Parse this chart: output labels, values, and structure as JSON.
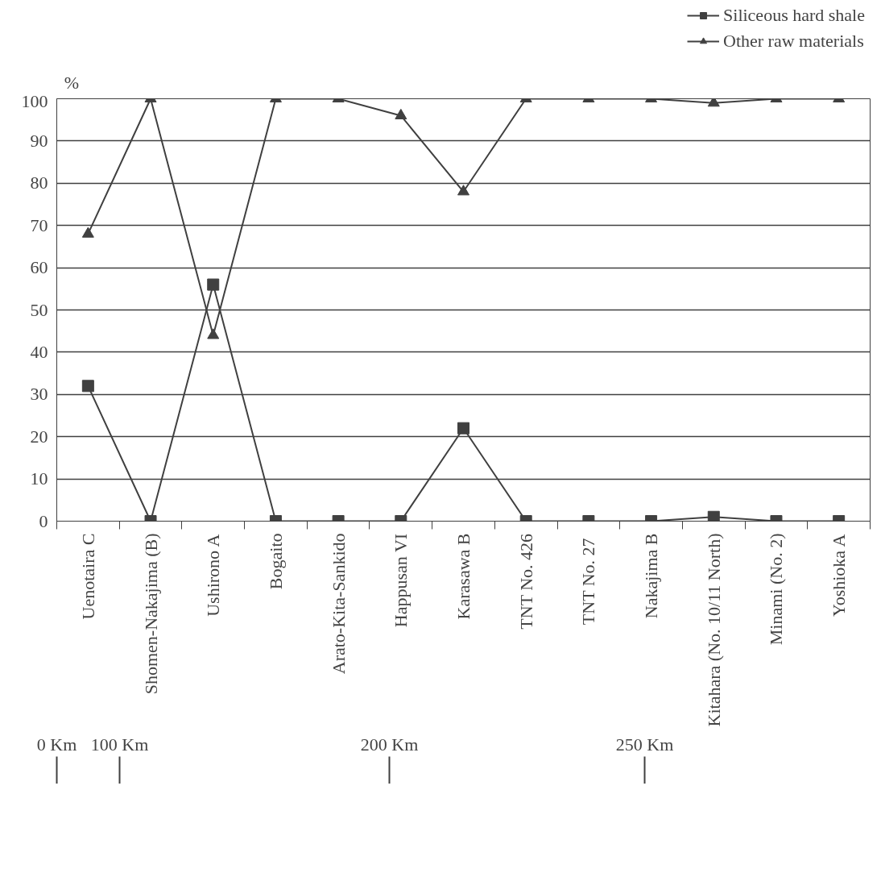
{
  "chart_data": {
    "type": "line",
    "ylabel": "%",
    "categories": [
      "Uenotaira C",
      "Shomen-Nakajima (B)",
      "Ushirono A",
      "Bogaito",
      "Arato-Kita-Sankido",
      "Happusan VI",
      "Karasawa B",
      "TNT No. 426",
      "TNT No.  27",
      "Nakajima B",
      "Kitahara (No. 10/11 North)",
      "Minami (No. 2)",
      "Yoshioka A"
    ],
    "series": [
      {
        "name": "Siliceous hard shale",
        "color": "#404040",
        "marker": "square",
        "values": [
          32,
          0,
          56,
          0,
          0,
          0,
          22,
          0,
          0,
          0,
          1,
          0,
          0
        ]
      },
      {
        "name": "Other raw materials",
        "color": "#404040",
        "marker": "triangle",
        "values": [
          68,
          100,
          44,
          100,
          100,
          96,
          78,
          100,
          100,
          100,
          99,
          100,
          100
        ]
      }
    ],
    "ylim": [
      0,
      100
    ],
    "yticks": [
      0,
      10,
      20,
      30,
      40,
      50,
      60,
      70,
      80,
      90,
      100
    ],
    "grid": "y",
    "legend": "top right",
    "line_style": "solid",
    "annotations": [
      "0 Km",
      "100 Km",
      "200 Km",
      "250 Km"
    ]
  }
}
